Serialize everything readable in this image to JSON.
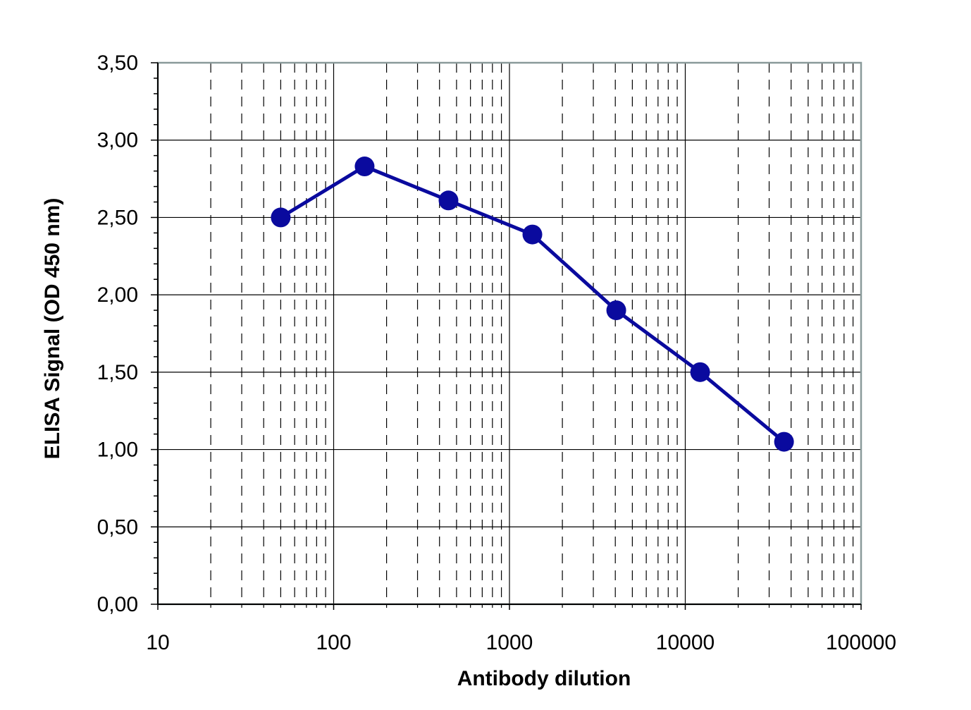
{
  "chart_data": {
    "type": "line",
    "xlabel": "Antibody dilution",
    "ylabel": "ELISA Signal (OD 450 nm)",
    "x_scale": "log",
    "xlim": [
      10,
      100000
    ],
    "ylim": [
      0,
      3.5
    ],
    "x_ticks": [
      10,
      100,
      1000,
      10000,
      100000
    ],
    "x_tick_labels": [
      "10",
      "100",
      "1000",
      "10000",
      "100000"
    ],
    "y_ticks": [
      0,
      0.5,
      1,
      1.5,
      2,
      2.5,
      3,
      3.5
    ],
    "y_tick_labels": [
      "0,00",
      "0,50",
      "1,00",
      "1,50",
      "2,00",
      "2,50",
      "3,00",
      "3,50"
    ],
    "grid": true,
    "legend": "none",
    "series": [
      {
        "color": "#0a0a9e",
        "x": [
          50,
          150,
          450,
          1350,
          4050,
          12150,
          36450
        ],
        "y": [
          2.5,
          2.83,
          2.61,
          2.39,
          1.9,
          1.5,
          1.05
        ]
      }
    ]
  }
}
